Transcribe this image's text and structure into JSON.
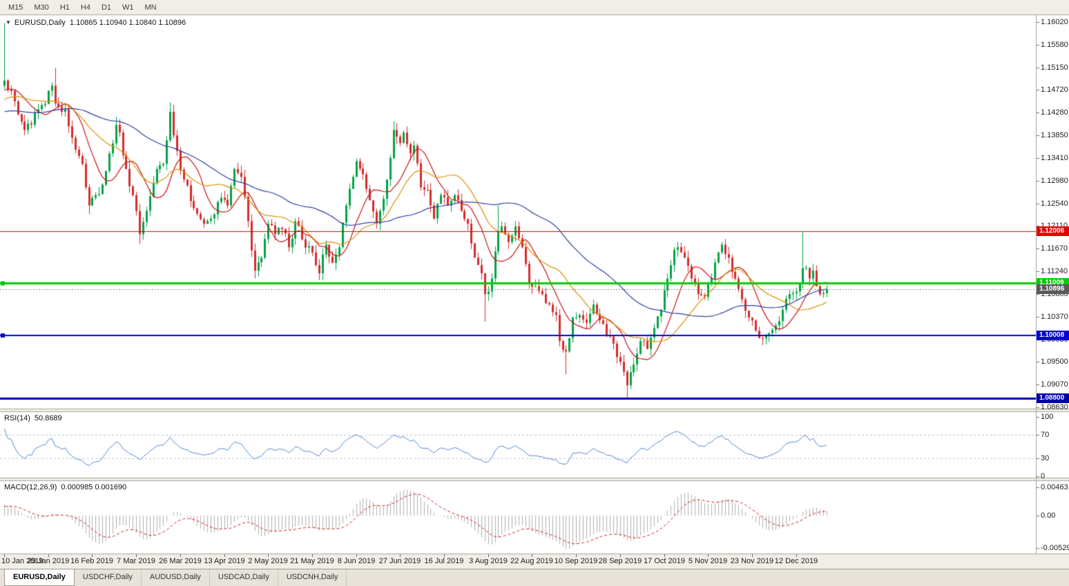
{
  "toolbar": {
    "timeframes": [
      "M15",
      "M30",
      "H1",
      "H4",
      "D1",
      "W1",
      "MN"
    ]
  },
  "chart": {
    "symbol_label": "EURUSD,Daily",
    "ohlc_label": "1.10865 1.10940 1.10840 1.10896",
    "symbol_dropdown_icon": "▼"
  },
  "indicators": {
    "rsi": {
      "name": "RSI(14)",
      "value": "50.8689",
      "axis_labels": [
        "100",
        "70",
        "30",
        "0"
      ]
    },
    "macd": {
      "name": "MACD(12,26,9)",
      "values": "0.000985 0.001690",
      "axis_labels": [
        "0.00463",
        "0.00",
        "-0.005299"
      ]
    }
  },
  "tabs": [
    {
      "label": "EURUSD,Daily",
      "active": true
    },
    {
      "label": "USDCHF,Daily",
      "active": false
    },
    {
      "label": "AUDUSD,Daily",
      "active": false
    },
    {
      "label": "USDCAD,Daily",
      "active": false
    },
    {
      "label": "USDCNH,Daily",
      "active": false
    }
  ],
  "chart_data": {
    "type": "candlestick",
    "symbol": "EURUSD",
    "period": "Daily",
    "last_ohlc": {
      "open": 1.10865,
      "high": 1.1094,
      "low": 1.1084,
      "close": 1.10896
    },
    "y_range": [
      1.0863,
      1.1602
    ],
    "y_axis_ticks": [
      "1.16020",
      "1.15580",
      "1.15150",
      "1.14720",
      "1.14280",
      "1.13850",
      "1.13410",
      "1.12980",
      "1.12540",
      "1.12110",
      "1.11670",
      "1.11240",
      "1.10800",
      "1.10370",
      "1.09930",
      "1.09500",
      "1.09070",
      "1.08630"
    ],
    "x_axis_ticks": [
      "10 Jan 2019",
      "29 Jan 2019",
      "16 Feb 2019",
      "7 Mar 2019",
      "26 Mar 2019",
      "13 Apr 2019",
      "2 May 2019",
      "21 May 2019",
      "8 Jun 2019",
      "27 Jun 2019",
      "16 Jul 2019",
      "3 Aug 2019",
      "22 Aug 2019",
      "10 Sep 2019",
      "28 Sep 2019",
      "17 Oct 2019",
      "5 Nov 2019",
      "23 Nov 2019",
      "12 Dec 2019"
    ],
    "num_candles": 244,
    "candles_per_x_tick": 13,
    "colors": {
      "up": "#00a344",
      "down": "#d42c2c"
    },
    "levels": [
      {
        "price": 1.12006,
        "label": "1.12006",
        "color": "#e60000",
        "width": 1,
        "marker": false
      },
      {
        "price": 1.11009,
        "label": "1.11009",
        "color": "#00cc00",
        "width": 3,
        "marker": true
      },
      {
        "price": 1.10008,
        "label": "1.10008",
        "color": "#0000e0",
        "width": 2,
        "marker": true
      },
      {
        "price": 1.088,
        "label": "1.08800",
        "color": "#0000a8",
        "width": 3,
        "marker": false
      }
    ],
    "current_price": {
      "price": 1.10896,
      "label": "1.10896",
      "color": "#5a5a5a"
    },
    "close_anchors": [
      [
        0,
        1.149
      ],
      [
        2,
        1.147
      ],
      [
        4,
        1.1425
      ],
      [
        6,
        1.1395
      ],
      [
        8,
        1.1405
      ],
      [
        10,
        1.1435
      ],
      [
        12,
        1.1445
      ],
      [
        14,
        1.148
      ],
      [
        15,
        1.1446
      ],
      [
        16,
        1.144
      ],
      [
        18,
        1.1435
      ],
      [
        20,
        1.138
      ],
      [
        23,
        1.133
      ],
      [
        25,
        1.125
      ],
      [
        26,
        1.1265
      ],
      [
        27,
        1.127
      ],
      [
        29,
        1.129
      ],
      [
        31,
        1.135
      ],
      [
        33,
        1.1405
      ],
      [
        34,
        1.139
      ],
      [
        36,
        1.132
      ],
      [
        38,
        1.127
      ],
      [
        40,
        1.1195
      ],
      [
        42,
        1.124
      ],
      [
        45,
        1.132
      ],
      [
        47,
        1.133
      ],
      [
        49,
        1.143
      ],
      [
        51,
        1.1355
      ],
      [
        53,
        1.13
      ],
      [
        56,
        1.1245
      ],
      [
        59,
        1.1215
      ],
      [
        61,
        1.1225
      ],
      [
        64,
        1.1265
      ],
      [
        66,
        1.125
      ],
      [
        68,
        1.132
      ],
      [
        70,
        1.1305
      ],
      [
        72,
        1.122
      ],
      [
        74,
        1.1125
      ],
      [
        76,
        1.115
      ],
      [
        78,
        1.1215
      ],
      [
        80,
        1.1195
      ],
      [
        82,
        1.1205
      ],
      [
        84,
        1.117
      ],
      [
        86,
        1.122
      ],
      [
        88,
        1.1185
      ],
      [
        91,
        1.116
      ],
      [
        93,
        1.112
      ],
      [
        95,
        1.1175
      ],
      [
        97,
        1.114
      ],
      [
        99,
        1.117
      ],
      [
        101,
        1.125
      ],
      [
        103,
        1.1305
      ],
      [
        104,
        1.1335
      ],
      [
        106,
        1.131
      ],
      [
        108,
        1.126
      ],
      [
        110,
        1.1215
      ],
      [
        111,
        1.124
      ],
      [
        113,
        1.13
      ],
      [
        115,
        1.1395
      ],
      [
        117,
        1.137
      ],
      [
        118,
        1.139
      ],
      [
        120,
        1.135
      ],
      [
        121,
        1.1365
      ],
      [
        123,
        1.1285
      ],
      [
        125,
        1.128
      ],
      [
        127,
        1.1225
      ],
      [
        129,
        1.127
      ],
      [
        131,
        1.125
      ],
      [
        133,
        1.127
      ],
      [
        135,
        1.124
      ],
      [
        137,
        1.1215
      ],
      [
        139,
        1.115
      ],
      [
        141,
        1.112
      ],
      [
        142,
        1.108
      ],
      [
        143,
        1.1085
      ],
      [
        144,
        1.111
      ],
      [
        146,
        1.12
      ],
      [
        147,
        1.121
      ],
      [
        149,
        1.118
      ],
      [
        151,
        1.121
      ],
      [
        153,
        1.117
      ],
      [
        155,
        1.11
      ],
      [
        157,
        1.1095
      ],
      [
        159,
        1.108
      ],
      [
        161,
        1.106
      ],
      [
        163,
        1.104
      ],
      [
        164,
        1.099
      ],
      [
        166,
        1.097
      ],
      [
        168,
        1.1035
      ],
      [
        170,
        1.104
      ],
      [
        172,
        1.1025
      ],
      [
        174,
        1.106
      ],
      [
        176,
        1.103
      ],
      [
        178,
        1.1
      ],
      [
        180,
        1.0985
      ],
      [
        182,
        1.095
      ],
      [
        184,
        1.0905
      ],
      [
        186,
        1.0945
      ],
      [
        188,
        1.099
      ],
      [
        190,
        1.0975
      ],
      [
        192,
        1.1015
      ],
      [
        194,
        1.105
      ],
      [
        196,
        1.111
      ],
      [
        198,
        1.1165
      ],
      [
        199,
        1.117
      ],
      [
        201,
        1.115
      ],
      [
        203,
        1.111
      ],
      [
        205,
        1.108
      ],
      [
        207,
        1.1075
      ],
      [
        209,
        1.111
      ],
      [
        211,
        1.116
      ],
      [
        212,
        1.1175
      ],
      [
        214,
        1.115
      ],
      [
        216,
        1.111
      ],
      [
        218,
        1.107
      ],
      [
        220,
        1.1035
      ],
      [
        222,
        1.101
      ],
      [
        224,
        1.0995
      ],
      [
        226,
        1.1005
      ],
      [
        228,
        1.102
      ],
      [
        230,
        1.105
      ],
      [
        232,
        1.108
      ],
      [
        234,
        1.1085
      ],
      [
        236,
        1.113
      ],
      [
        237,
        1.113
      ],
      [
        238,
        1.111
      ],
      [
        239,
        1.1125
      ],
      [
        240,
        1.1095
      ],
      [
        241,
        1.108
      ],
      [
        242,
        1.1082
      ],
      [
        243,
        1.10896
      ]
    ],
    "warmup_anchors": [
      [
        -60,
        1.138
      ],
      [
        -45,
        1.145
      ],
      [
        -30,
        1.138
      ],
      [
        -15,
        1.144
      ],
      [
        -1,
        1.148
      ]
    ],
    "wick_overrides": [
      {
        "day": 0,
        "high": 1.16
      },
      {
        "day": 15,
        "high": 1.1514
      },
      {
        "day": 25,
        "low": 1.1234
      },
      {
        "day": 33,
        "high": 1.142
      },
      {
        "day": 40,
        "low": 1.1176
      },
      {
        "day": 49,
        "high": 1.1448
      },
      {
        "day": 74,
        "low": 1.111
      },
      {
        "day": 93,
        "low": 1.1107
      },
      {
        "day": 115,
        "high": 1.1412
      },
      {
        "day": 142,
        "low": 1.1027
      },
      {
        "day": 146,
        "high": 1.125
      },
      {
        "day": 166,
        "low": 1.0926
      },
      {
        "day": 184,
        "low": 1.0879
      },
      {
        "day": 199,
        "high": 1.118
      },
      {
        "day": 212,
        "high": 1.118
      },
      {
        "day": 224,
        "low": 1.0982
      },
      {
        "day": 236,
        "high": 1.1199
      }
    ],
    "moving_averages": [
      {
        "period": 10,
        "color": "#cc1111"
      },
      {
        "period": 21,
        "color": "#dd8f00"
      },
      {
        "period": 50,
        "color": "#2e3fa3"
      }
    ],
    "rsi": {
      "period": 14,
      "last_value": 50.8689,
      "levels": [
        70,
        30
      ],
      "range": [
        0,
        100
      ],
      "line_color": "#5588cc",
      "level_color": "#b9c3d9"
    },
    "macd": {
      "fast": 12,
      "slow": 26,
      "signal": 9,
      "main_value": 0.000985,
      "signal_value": 0.00169,
      "axis_values": [
        0.00463,
        0,
        -0.005299
      ],
      "histogram_color": "#b0b0b0",
      "signal_color": "#d02020"
    }
  }
}
